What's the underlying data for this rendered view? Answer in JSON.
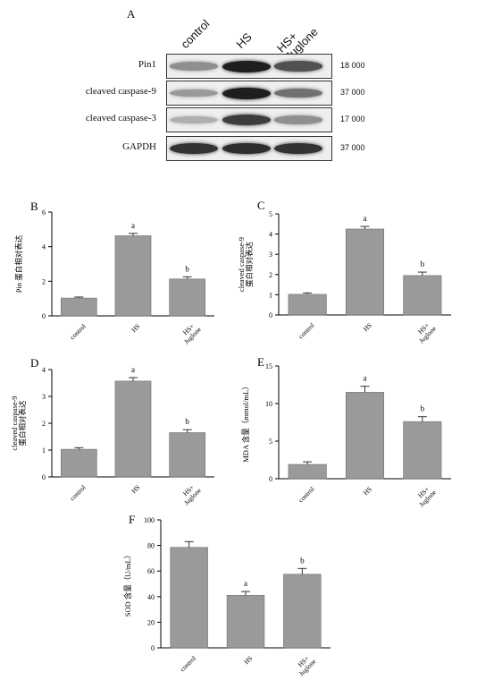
{
  "panel_a": {
    "letter": "A",
    "lanes": [
      "control",
      "HS",
      "HS+\nJuglone"
    ],
    "blots": [
      {
        "name": "Pin1",
        "mw": "18 000",
        "intensity": [
          0.45,
          1.0,
          0.75
        ]
      },
      {
        "name": "cleaved caspase-9",
        "mw": "37 000",
        "intensity": [
          0.4,
          1.0,
          0.6
        ]
      },
      {
        "name": "cleaved caspase-3",
        "mw": "17 000",
        "intensity": [
          0.3,
          0.85,
          0.45
        ]
      },
      {
        "name": "GAPDH",
        "mw": "37 000",
        "intensity": [
          0.9,
          0.92,
          0.9
        ]
      }
    ]
  },
  "chart_data": [
    {
      "letter": "B",
      "type": "bar",
      "categories": [
        "control",
        "HS",
        "HS+\nJuglone"
      ],
      "values": [
        1.03,
        4.63,
        2.13
      ],
      "errors": [
        0.06,
        0.14,
        0.13
      ],
      "sig_labels": [
        "",
        "a",
        "b"
      ],
      "ylabel": "Pin 蛋白相对表达",
      "ylim": [
        0,
        6
      ],
      "yticks": [
        0,
        2,
        4,
        6
      ]
    },
    {
      "letter": "C",
      "type": "bar",
      "categories": [
        "control",
        "HS",
        "HS+\nJuglone"
      ],
      "values": [
        1.02,
        4.25,
        1.95
      ],
      "errors": [
        0.07,
        0.13,
        0.17
      ],
      "sig_labels": [
        "",
        "a",
        "b"
      ],
      "ylabel": "cleaved caspase-9\n蛋白相对表达",
      "ylim": [
        0,
        5
      ],
      "yticks": [
        0,
        1,
        2,
        3,
        4,
        5
      ]
    },
    {
      "letter": "D",
      "type": "bar",
      "categories": [
        "control",
        "HS",
        "HS+\nJuglone"
      ],
      "values": [
        1.03,
        3.57,
        1.65
      ],
      "errors": [
        0.06,
        0.13,
        0.11
      ],
      "sig_labels": [
        "",
        "a",
        "b"
      ],
      "ylabel": "cleaved caspase-9\n蛋白相对表达",
      "ylim": [
        0,
        4
      ],
      "yticks": [
        0,
        1,
        2,
        3,
        4
      ]
    },
    {
      "letter": "E",
      "type": "bar",
      "categories": [
        "control",
        "HS",
        "HS+\nJuglone"
      ],
      "values": [
        1.9,
        11.5,
        7.6
      ],
      "errors": [
        0.35,
        0.8,
        0.65
      ],
      "sig_labels": [
        "",
        "a",
        "b"
      ],
      "ylabel": "MDA 含量（mmol/mL）",
      "ylim": [
        0,
        15
      ],
      "yticks": [
        0,
        5,
        10,
        15
      ]
    },
    {
      "letter": "F",
      "type": "bar",
      "categories": [
        "control",
        "HS",
        "HS+\nJuglone"
      ],
      "values": [
        78.5,
        41.0,
        57.5
      ],
      "errors": [
        4.5,
        3.0,
        4.5
      ],
      "sig_labels": [
        "",
        "a",
        "b"
      ],
      "ylabel": "SOD 含量（U/mL）",
      "ylim": [
        0,
        100
      ],
      "yticks": [
        0,
        20,
        40,
        60,
        80,
        100
      ]
    }
  ]
}
